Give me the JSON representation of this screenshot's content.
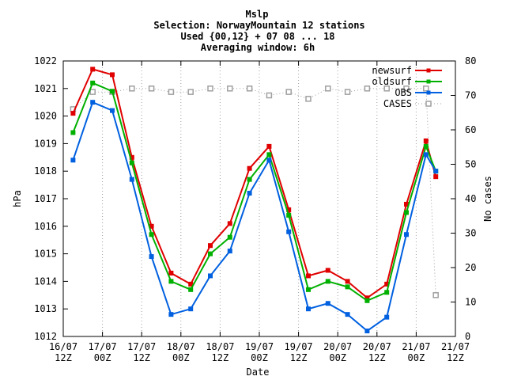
{
  "chart_data": {
    "type": "line",
    "title_lines": [
      "Mslp",
      "Selection: NorwayMountain     12 stations",
      "Used {00,12} + 07 08 ... 18",
      "Averaging window:  6h"
    ],
    "xlabel": "Date",
    "ylabel": "hPa",
    "y2label": "No cases",
    "ylim": [
      1012,
      1022
    ],
    "y_ticks": [
      "1012",
      "1013",
      "1014",
      "1015",
      "1016",
      "1017",
      "1018",
      "1019",
      "1020",
      "1021",
      "1022"
    ],
    "y2lim": [
      0,
      80
    ],
    "y2_ticks": [
      "0",
      "10",
      "20",
      "30",
      "40",
      "50",
      "60",
      "70",
      "80"
    ],
    "x_range_hours": [
      0,
      120
    ],
    "x_ticks": [
      {
        "h": 0,
        "date": "16/07",
        "time": "12Z"
      },
      {
        "h": 12,
        "date": "17/07",
        "time": "00Z"
      },
      {
        "h": 24,
        "date": "17/07",
        "time": "12Z"
      },
      {
        "h": 36,
        "date": "18/07",
        "time": "00Z"
      },
      {
        "h": 48,
        "date": "18/07",
        "time": "12Z"
      },
      {
        "h": 60,
        "date": "19/07",
        "time": "00Z"
      },
      {
        "h": 72,
        "date": "19/07",
        "time": "12Z"
      },
      {
        "h": 84,
        "date": "20/07",
        "time": "00Z"
      },
      {
        "h": 96,
        "date": "20/07",
        "time": "12Z"
      },
      {
        "h": 108,
        "date": "21/07",
        "time": "00Z"
      },
      {
        "h": 120,
        "date": "21/07",
        "time": "12Z"
      }
    ],
    "x_hours": [
      3,
      9,
      15,
      21,
      27,
      33,
      39,
      45,
      51,
      57,
      63,
      69,
      75,
      81,
      87,
      93,
      99,
      105,
      111,
      114
    ],
    "legend_position": "top-right",
    "series": [
      {
        "name": "newsurf",
        "color": "#e00000",
        "marker": "filled-square",
        "axis": "left",
        "values": [
          1020.1,
          1021.7,
          1021.5,
          1018.5,
          1016.0,
          1014.3,
          1013.9,
          1015.3,
          1016.1,
          1018.1,
          1018.9,
          1016.6,
          1014.2,
          1014.4,
          1014.0,
          1013.4,
          1013.9,
          1016.8,
          1019.1,
          1017.8
        ]
      },
      {
        "name": "oldsurf",
        "color": "#00b000",
        "marker": "filled-square",
        "axis": "left",
        "values": [
          1019.4,
          1021.2,
          1020.9,
          1018.3,
          1015.7,
          1014.0,
          1013.7,
          1015.0,
          1015.6,
          1017.7,
          1018.6,
          1016.4,
          1013.7,
          1014.0,
          1013.8,
          1013.3,
          1013.6,
          1016.5,
          1018.9,
          1018.0
        ]
      },
      {
        "name": "OBS",
        "color": "#0060e0",
        "marker": "filled-square",
        "axis": "left",
        "values": [
          1018.4,
          1020.5,
          1020.2,
          1017.7,
          1014.9,
          1012.8,
          1013.0,
          1014.2,
          1015.1,
          1017.2,
          1018.4,
          1015.8,
          1013.0,
          1013.2,
          1012.8,
          1012.2,
          1012.7,
          1015.7,
          1018.6,
          1018.0
        ]
      },
      {
        "name": "CASES",
        "color": "#a0a0a0",
        "marker": "open-square",
        "axis": "right",
        "dashed": true,
        "values": [
          66,
          71,
          71,
          72,
          72,
          71,
          71,
          72,
          72,
          72,
          70,
          71,
          69,
          72,
          71,
          72,
          72,
          72,
          72,
          12
        ]
      }
    ]
  }
}
